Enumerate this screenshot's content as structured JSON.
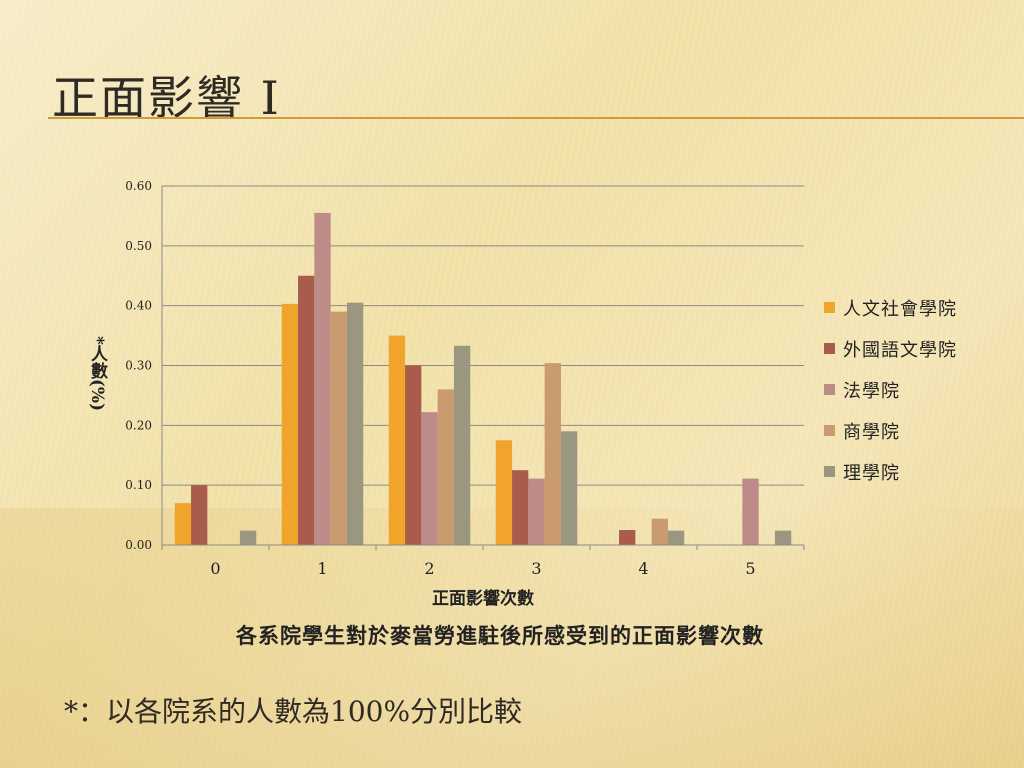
{
  "slide": {
    "title": "正面影響 I",
    "caption": "各系院學生對於麥當勞進駐後所感受到的正面影響次數",
    "footnote": "*：以各院系的人數為100%分別比較"
  },
  "chart_data": {
    "type": "bar",
    "categories": [
      "0",
      "1",
      "2",
      "3",
      "4",
      "5"
    ],
    "series": [
      {
        "name": "人文社會學院",
        "color": "#f0a42c",
        "values": [
          0.07,
          0.403,
          0.35,
          0.175,
          0.0,
          0.0
        ]
      },
      {
        "name": "外國語文學院",
        "color": "#a95c4b",
        "values": [
          0.1,
          0.45,
          0.3,
          0.125,
          0.025,
          0.0
        ]
      },
      {
        "name": "法學院",
        "color": "#be8c88",
        "values": [
          0.0,
          0.555,
          0.222,
          0.111,
          0.0,
          0.111
        ]
      },
      {
        "name": "商學院",
        "color": "#c99b6e",
        "values": [
          0.0,
          0.39,
          0.26,
          0.304,
          0.044,
          0.0
        ]
      },
      {
        "name": "理學院",
        "color": "#9b9680",
        "values": [
          0.024,
          0.405,
          0.333,
          0.19,
          0.024,
          0.024
        ]
      }
    ],
    "xlabel": "正面影響次數",
    "ylabel": "*人數(%)",
    "ylim": [
      0,
      0.6
    ],
    "yticks": [
      "0.00",
      "0.10",
      "0.20",
      "0.30",
      "0.40",
      "0.50",
      "0.60"
    ],
    "grid": true,
    "legend_position": "right"
  }
}
